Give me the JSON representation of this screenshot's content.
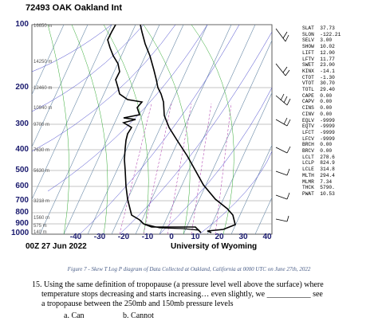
{
  "figure": {
    "title": "72493 OAK Oakland Int",
    "date": "00Z 27 Jun 2022",
    "university": "University of Wyoming",
    "pressure_labels": [
      "100",
      "200",
      "300",
      "400",
      "500",
      "600",
      "700",
      "800",
      "900",
      "1000"
    ],
    "temp_labels": [
      "-40",
      "-30",
      "-20",
      "-10",
      "0",
      "10",
      "20",
      "30",
      "40"
    ],
    "height_labels": [
      "16650 m",
      "14250 m",
      "12460 m",
      "10940 m",
      "9700 m",
      "7630 m",
      "5630 m",
      "3218 m",
      "1560 m",
      "575 m",
      "140 m"
    ]
  },
  "indices": [
    {
      "key": "SLAT",
      "value": "37.73"
    },
    {
      "key": "SLON",
      "value": "-122.21"
    },
    {
      "key": "SELV",
      "value": "3.00"
    },
    {
      "key": "SHOW",
      "value": "10.02"
    },
    {
      "key": "LIFT",
      "value": "12.00"
    },
    {
      "key": "LFTV",
      "value": "11.77"
    },
    {
      "key": "SWET",
      "value": "23.00"
    },
    {
      "key": "KINX",
      "value": "-14.1"
    },
    {
      "key": "CTOT",
      "value": "-1.30"
    },
    {
      "key": "VTOT",
      "value": "30.70"
    },
    {
      "key": "TOTL",
      "value": "29.40"
    },
    {
      "key": "CAPE",
      "value": "0.00"
    },
    {
      "key": "CAPV",
      "value": "0.00"
    },
    {
      "key": "CINS",
      "value": "0.00"
    },
    {
      "key": "CINV",
      "value": "0.00"
    },
    {
      "key": "EQLV",
      "value": "-9999"
    },
    {
      "key": "EQTV",
      "value": "-9999"
    },
    {
      "key": "LFCT",
      "value": "-9999"
    },
    {
      "key": "LFCV",
      "value": "-9999"
    },
    {
      "key": "BRCH",
      "value": "0.00"
    },
    {
      "key": "BRCV",
      "value": "0.00"
    },
    {
      "key": "LCLT",
      "value": "278.6"
    },
    {
      "key": "LCLP",
      "value": "824.9"
    },
    {
      "key": "LCLE",
      "value": "314.8"
    },
    {
      "key": "MLTH",
      "value": "294.4"
    },
    {
      "key": "MLMR",
      "value": "7.34"
    },
    {
      "key": "THCK",
      "value": "5790."
    },
    {
      "key": "PWAT",
      "value": "10.53"
    }
  ],
  "caption": "Figure 7 - Skew T Log P diagram of Data Collected at Oakland, California at 0000 UTC on June 27th, 2022",
  "question": {
    "line1": "15. Using the same definition of tropopause (a pressure level well above the surface) where",
    "line2": "temperature stops decreasing and starts increasing… even slightly, we ___________ see",
    "line3": "a tropopause between the 250mb and 150mb pressure levels",
    "answer_a": "a.  Can",
    "answer_b": "b. Cannot"
  },
  "colors": {
    "isobar": "#888888",
    "isotherm": "#6a8aa8",
    "dry_adiabat": "#4444cc",
    "moist_adiabat": "#33aa33",
    "mixing_ratio": "#aa33aa",
    "sounding": "#000000",
    "axis_labels": "#1a1a6e",
    "caption": "#4a5e88"
  }
}
